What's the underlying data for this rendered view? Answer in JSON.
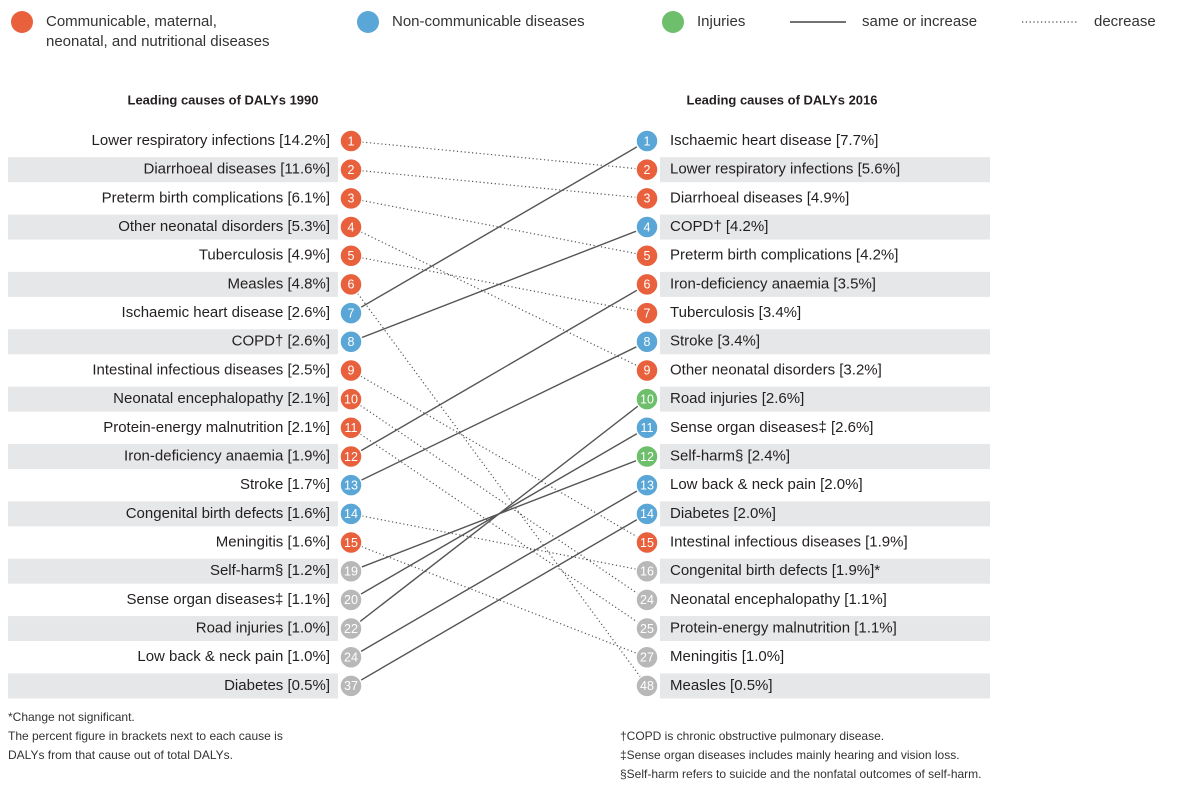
{
  "legend": {
    "groups": [
      {
        "lines": [
          "Communicable, maternal,",
          "neonatal, and nutritional diseases"
        ],
        "color": "#e8603c"
      },
      {
        "lines": [
          "Non-communicable diseases"
        ],
        "color": "#5aa6d6"
      },
      {
        "lines": [
          "Injuries"
        ],
        "color": "#6dbf6b"
      }
    ],
    "styles": [
      {
        "label": "same or increase",
        "style": "solid"
      },
      {
        "label": "decrease",
        "style": "dotted"
      }
    ]
  },
  "left": {
    "heading": "Leading causes of DALYs 1990",
    "rows": [
      {
        "label": "Lower respiratory infections [14.2%]",
        "rank": "1",
        "color": "#e8603c"
      },
      {
        "label": "Diarrhoeal diseases [11.6%]",
        "rank": "2",
        "color": "#e8603c"
      },
      {
        "label": "Preterm birth complications [6.1%]",
        "rank": "3",
        "color": "#e8603c"
      },
      {
        "label": "Other neonatal disorders [5.3%]",
        "rank": "4",
        "color": "#e8603c"
      },
      {
        "label": "Tuberculosis [4.9%]",
        "rank": "5",
        "color": "#e8603c"
      },
      {
        "label": "Measles [4.8%]",
        "rank": "6",
        "color": "#e8603c"
      },
      {
        "label": "Ischaemic heart disease [2.6%]",
        "rank": "7",
        "color": "#5aa6d6"
      },
      {
        "label": "COPD† [2.6%]",
        "rank": "8",
        "color": "#5aa6d6"
      },
      {
        "label": "Intestinal infectious diseases [2.5%]",
        "rank": "9",
        "color": "#e8603c"
      },
      {
        "label": "Neonatal encephalopathy [2.1%]",
        "rank": "10",
        "color": "#e8603c"
      },
      {
        "label": "Protein-energy malnutrition [2.1%]",
        "rank": "11",
        "color": "#e8603c"
      },
      {
        "label": "Iron-deficiency anaemia [1.9%]",
        "rank": "12",
        "color": "#e8603c"
      },
      {
        "label": "Stroke [1.7%]",
        "rank": "13",
        "color": "#5aa6d6"
      },
      {
        "label": "Congenital birth defects [1.6%]",
        "rank": "14",
        "color": "#5aa6d6"
      },
      {
        "label": "Meningitis [1.6%]",
        "rank": "15",
        "color": "#e8603c"
      },
      {
        "label": "Self-harm§ [1.2%]",
        "rank": "19",
        "color": "#b8b8b8"
      },
      {
        "label": "Sense organ diseases‡ [1.1%]",
        "rank": "20",
        "color": "#b8b8b8"
      },
      {
        "label": "Road injuries [1.0%]",
        "rank": "22",
        "color": "#b8b8b8"
      },
      {
        "label": "Low back & neck pain [1.0%]",
        "rank": "24",
        "color": "#b8b8b8"
      },
      {
        "label": "Diabetes [0.5%]",
        "rank": "37",
        "color": "#b8b8b8"
      }
    ]
  },
  "right": {
    "heading": "Leading causes of DALYs 2016",
    "rows": [
      {
        "label": "Ischaemic heart disease [7.7%]",
        "rank": "1",
        "color": "#5aa6d6"
      },
      {
        "label": "Lower respiratory infections [5.6%]",
        "rank": "2",
        "color": "#e8603c"
      },
      {
        "label": "Diarrhoeal diseases [4.9%]",
        "rank": "3",
        "color": "#e8603c"
      },
      {
        "label": "COPD† [4.2%]",
        "rank": "4",
        "color": "#5aa6d6"
      },
      {
        "label": "Preterm birth complications [4.2%]",
        "rank": "5",
        "color": "#e8603c"
      },
      {
        "label": "Iron-deficiency anaemia [3.5%]",
        "rank": "6",
        "color": "#e8603c"
      },
      {
        "label": "Tuberculosis [3.4%]",
        "rank": "7",
        "color": "#e8603c"
      },
      {
        "label": "Stroke [3.4%]",
        "rank": "8",
        "color": "#5aa6d6"
      },
      {
        "label": "Other neonatal disorders [3.2%]",
        "rank": "9",
        "color": "#e8603c"
      },
      {
        "label": "Road injuries [2.6%]",
        "rank": "10",
        "color": "#6dbf6b"
      },
      {
        "label": "Sense organ diseases‡ [2.6%]",
        "rank": "11",
        "color": "#5aa6d6"
      },
      {
        "label": "Self-harm§ [2.4%]",
        "rank": "12",
        "color": "#6dbf6b"
      },
      {
        "label": "Low back & neck pain [2.0%]",
        "rank": "13",
        "color": "#5aa6d6"
      },
      {
        "label": "Diabetes [2.0%]",
        "rank": "14",
        "color": "#5aa6d6"
      },
      {
        "label": "Intestinal infectious diseases [1.9%]",
        "rank": "15",
        "color": "#e8603c"
      },
      {
        "label": "Congenital birth defects [1.9%]*",
        "rank": "16",
        "color": "#b8b8b8"
      },
      {
        "label": "Neonatal encephalopathy [1.1%]",
        "rank": "24",
        "color": "#b8b8b8"
      },
      {
        "label": "Protein-energy malnutrition [1.1%]",
        "rank": "25",
        "color": "#b8b8b8"
      },
      {
        "label": "Meningitis [1.0%]",
        "rank": "27",
        "color": "#b8b8b8"
      },
      {
        "label": "Measles [0.5%]",
        "rank": "48",
        "color": "#b8b8b8"
      }
    ]
  },
  "links": [
    {
      "from": 0,
      "to": 1,
      "style": "dotted"
    },
    {
      "from": 1,
      "to": 2,
      "style": "dotted"
    },
    {
      "from": 2,
      "to": 4,
      "style": "dotted"
    },
    {
      "from": 3,
      "to": 8,
      "style": "dotted"
    },
    {
      "from": 4,
      "to": 6,
      "style": "dotted"
    },
    {
      "from": 5,
      "to": 19,
      "style": "dotted"
    },
    {
      "from": 6,
      "to": 0,
      "style": "solid"
    },
    {
      "from": 7,
      "to": 3,
      "style": "solid"
    },
    {
      "from": 8,
      "to": 14,
      "style": "dotted"
    },
    {
      "from": 9,
      "to": 16,
      "style": "dotted"
    },
    {
      "from": 10,
      "to": 17,
      "style": "dotted"
    },
    {
      "from": 11,
      "to": 5,
      "style": "solid"
    },
    {
      "from": 12,
      "to": 7,
      "style": "solid"
    },
    {
      "from": 13,
      "to": 15,
      "style": "dotted"
    },
    {
      "from": 14,
      "to": 18,
      "style": "dotted"
    },
    {
      "from": 15,
      "to": 11,
      "style": "solid"
    },
    {
      "from": 16,
      "to": 10,
      "style": "solid"
    },
    {
      "from": 17,
      "to": 9,
      "style": "solid"
    },
    {
      "from": 18,
      "to": 12,
      "style": "solid"
    },
    {
      "from": 19,
      "to": 13,
      "style": "solid"
    }
  ],
  "notes": {
    "left": [
      "*Change not significant.",
      "The percent figure in brackets next to each cause is",
      "DALYs from that cause out of total DALYs."
    ],
    "right": [
      "†COPD is chronic obstructive pulmonary disease.",
      "‡Sense organ diseases includes mainly hearing and vision loss.",
      "§Self-harm refers to suicide and the nonfatal outcomes of self-harm."
    ]
  }
}
